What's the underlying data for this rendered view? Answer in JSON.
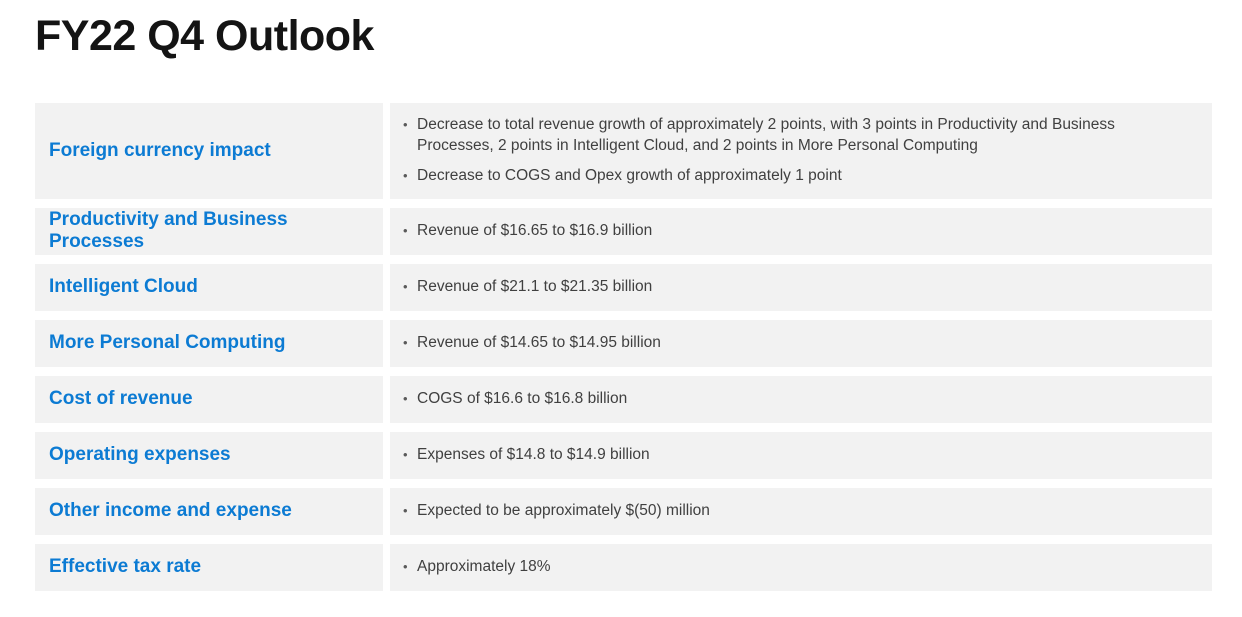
{
  "page": {
    "title": "FY22 Q4 Outlook"
  },
  "colors": {
    "row_bg": "#f2f2f2",
    "label_blue": "#0c7bd3",
    "body_text": "#404040",
    "title_text": "#141414",
    "bullet_dot": "#5a5a5a",
    "page_bg": "#ffffff"
  },
  "icons": {
    "bullet": "•"
  },
  "table": {
    "rows": [
      {
        "label": "Foreign currency impact",
        "bullets": [
          "Decrease to total revenue growth of approximately 2 points, with 3 points in Productivity and Business Processes, 2 points in Intelligent Cloud, and 2 points in More Personal Computing",
          "Decrease to COGS and Opex growth of approximately 1 point"
        ]
      },
      {
        "label": "Productivity and Business Processes",
        "bullets": [
          "Revenue of $16.65 to $16.9 billion"
        ]
      },
      {
        "label": "Intelligent Cloud",
        "bullets": [
          "Revenue of $21.1 to $21.35 billion"
        ]
      },
      {
        "label": "More Personal Computing",
        "bullets": [
          "Revenue of $14.65 to $14.95 billion"
        ]
      },
      {
        "label": "Cost of revenue",
        "bullets": [
          "COGS of $16.6 to $16.8 billion"
        ]
      },
      {
        "label": "Operating expenses",
        "bullets": [
          "Expenses of $14.8 to $14.9 billion"
        ]
      },
      {
        "label": "Other income and expense",
        "bullets": [
          "Expected to be approximately $(50) million"
        ]
      },
      {
        "label": "Effective tax rate",
        "bullets": [
          "Approximately 18%"
        ]
      }
    ]
  }
}
